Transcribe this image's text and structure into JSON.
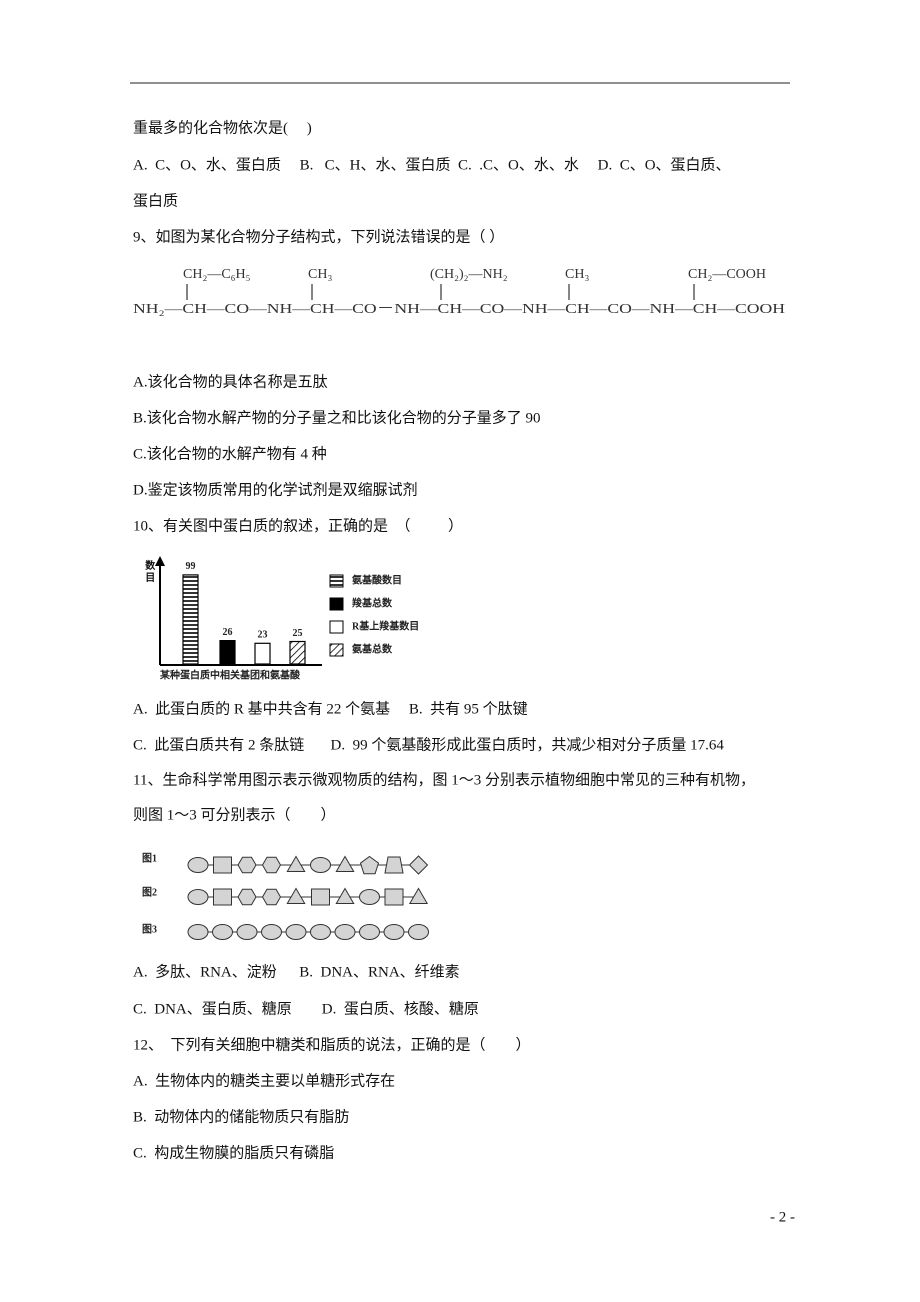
{
  "q8": {
    "stem_end": "重最多的化合物依次是(     )",
    "options": "A.  C、O、水、蛋白质     B.   C、H、水、蛋白质  C.  .C、O、水、水     D.  C、O、蛋白质、",
    "options_cont": "蛋白质"
  },
  "q9": {
    "stem": "9、如图为某化合物分子结构式，下列说法错误的是（ ）",
    "formula": {
      "side_chains": [
        "CH₂—C₆H₅",
        "CH₃",
        "(CH₂)₂—NH₂",
        "CH₃",
        "CH₂—COOH"
      ],
      "main_chain": "NH₂—CH—CO—NH—CH—CO－NH—CH—CO—NH—CH—CO—NH—CH—COOH"
    },
    "options": [
      "A.该化合物的具体名称是五肽",
      "B.该化合物水解产物的分子量之和比该化合物的分子量多了 90",
      "C.该化合物的水解产物有 4 种",
      "D.鉴定该物质常用的化学试剂是双缩脲试剂"
    ]
  },
  "q10": {
    "stem": "10、有关图中蛋白质的叙述，正确的是  （          ）",
    "figure": {
      "ylabel": "数目",
      "xlabel": "某种蛋白质中相关基团和氨基酸",
      "values": [
        99,
        26,
        23,
        25
      ],
      "legend": [
        "氨基酸数目",
        "羧基总数",
        "R基上羧基数目",
        "氨基总数"
      ]
    },
    "options": [
      "A.  此蛋白质的 R 基中共含有 22 个氨基     B.  共有 95 个肽键",
      "C.  此蛋白质共有 2 条肽链       D.  99 个氨基酸形成此蛋白质时，共减少相对分子质量 17.64"
    ]
  },
  "q11": {
    "stem": [
      "11、生命科学常用图示表示微观物质的结构，图 1～3 分别表示植物细胞中常见的三种有机物，",
      "则图 1～3 可分别表示（        ）"
    ],
    "figure_labels": [
      "图1",
      "图2",
      "图3"
    ],
    "options": [
      "A.  多肽、RNA、淀粉      B.  DNA、RNA、纤维素",
      "C.  DNA、蛋白质、糖原        D.  蛋白质、核酸、糖原"
    ]
  },
  "q12": {
    "stem": "12、  下列有关细胞中糖类和脂质的说法，正确的是（        ）",
    "options": [
      "A.  生物体内的糖类主要以单糖形式存在",
      "B.  动物体内的储能物质只有脂肪",
      "C.  构成生物膜的脂质只有磷脂"
    ]
  },
  "page_number": "- 2 -"
}
